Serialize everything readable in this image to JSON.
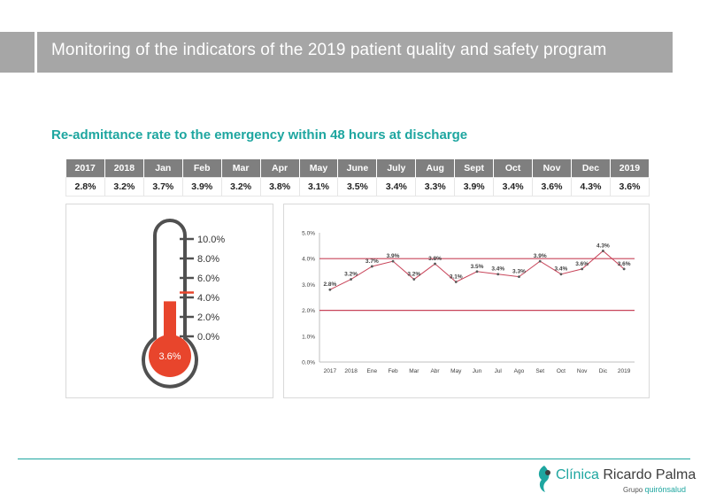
{
  "header": {
    "title": "Monitoring of the indicators of the 2019 patient quality and safety program"
  },
  "section": {
    "subtitle": "Re-admittance rate to the emergency within 48 hours at discharge"
  },
  "table": {
    "headers": [
      "2017",
      "2018",
      "Jan",
      "Feb",
      "Mar",
      "Apr",
      "May",
      "June",
      "July",
      "Aug",
      "Sept",
      "Oct",
      "Nov",
      "Dec",
      "2019"
    ],
    "values": [
      "2.8%",
      "3.2%",
      "3.7%",
      "3.9%",
      "3.2%",
      "3.8%",
      "3.1%",
      "3.5%",
      "3.4%",
      "3.3%",
      "3.9%",
      "3.4%",
      "3.6%",
      "4.3%",
      "3.6%"
    ]
  },
  "thermometer": {
    "value": 3.6,
    "value_label": "3.6%",
    "max": 10,
    "target": 4.5,
    "ticks": [
      "10.0%",
      "8.0%",
      "6.0%",
      "4.0%",
      "2.0%",
      "0.0%"
    ],
    "tick_values": [
      10,
      8,
      6,
      4,
      2,
      0
    ],
    "fill_color": "#e8452c",
    "frame_color": "#505050"
  },
  "chart_data": {
    "type": "line",
    "categories": [
      "2017",
      "2018",
      "Ene",
      "Feb",
      "Mar",
      "Abr",
      "May",
      "Jun",
      "Jul",
      "Ago",
      "Set",
      "Oct",
      "Nov",
      "Dic",
      "2019"
    ],
    "series": [
      {
        "values": [
          2.8,
          3.2,
          3.7,
          3.9,
          3.2,
          3.8,
          3.1,
          3.5,
          3.4,
          3.3,
          3.9,
          3.4,
          3.6,
          4.3,
          3.6
        ],
        "labels": [
          "2.8%",
          "3.2%",
          "3.7%",
          "3.9%",
          "3.2%",
          "3.8%",
          "3.1%",
          "3.5%",
          "3.4%",
          "3.3%",
          "3.9%",
          "3.4%",
          "3.6%",
          "4.3%",
          "3.6%"
        ],
        "color": "#c8455a"
      }
    ],
    "reference_lines": [
      4.0,
      2.0
    ],
    "reference_color": "#c8455a",
    "ylim": [
      0,
      5
    ],
    "yticks": [
      0,
      1,
      2,
      3,
      4,
      5
    ],
    "ytick_labels": [
      "0.0%",
      "1.0%",
      "2.0%",
      "3.0%",
      "4.0%",
      "5.0%"
    ],
    "grid": false,
    "xlabel": "",
    "ylabel": ""
  },
  "footer": {
    "brand_part1": "Clínica",
    "brand_part2": " Ricardo Palma",
    "group_label": "Grupo",
    "group_brand": "quirónsalud"
  }
}
